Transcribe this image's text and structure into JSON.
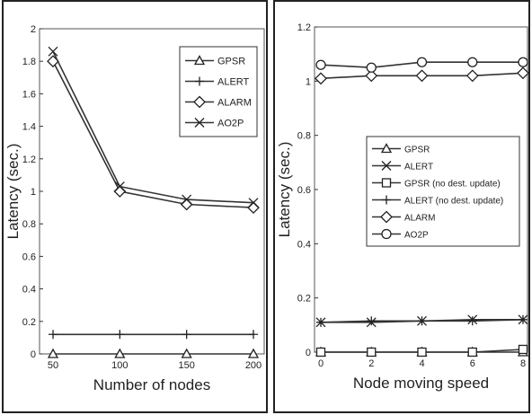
{
  "chart_data": [
    {
      "type": "line",
      "title": "",
      "xlabel": "Number of nodes",
      "ylabel": "Latency (sec.)",
      "x": [
        50,
        100,
        150,
        200
      ],
      "xticks": [
        "50",
        "100",
        "150",
        "200"
      ],
      "ylim": [
        0,
        2
      ],
      "yticks": [
        "0",
        "0.2",
        "0.4",
        "0.6",
        "0.8",
        "1",
        "1.2",
        "1.4",
        "1.6",
        "1.8",
        "2"
      ],
      "legend_position": "top-right",
      "grid": false,
      "series": [
        {
          "name": "GPSR",
          "marker": "triangle",
          "values": [
            0.0,
            0.0,
            0.0,
            0.0
          ]
        },
        {
          "name": "ALERT",
          "marker": "plus",
          "values": [
            0.12,
            0.12,
            0.12,
            0.12
          ]
        },
        {
          "name": "ALARM",
          "marker": "diamond",
          "values": [
            1.8,
            1.0,
            0.92,
            0.9
          ]
        },
        {
          "name": "AO2P",
          "marker": "x",
          "values": [
            1.86,
            1.03,
            0.95,
            0.93
          ]
        }
      ]
    },
    {
      "type": "line",
      "title": "",
      "xlabel": "Node moving speed",
      "ylabel": "Latency (sec.)",
      "x": [
        0,
        2,
        4,
        6,
        8
      ],
      "xticks": [
        "0",
        "2",
        "4",
        "6",
        "8"
      ],
      "ylim": [
        0,
        1.2
      ],
      "yticks": [
        "0",
        "0.2",
        "0.4",
        "0.6",
        "0.8",
        "1",
        "1.2"
      ],
      "legend_position": "center-right",
      "grid": false,
      "series": [
        {
          "name": "GPSR",
          "marker": "triangle",
          "values": [
            0.0,
            0.0,
            0.0,
            0.0,
            0.0
          ]
        },
        {
          "name": "ALERT",
          "marker": "x",
          "values": [
            0.11,
            0.11,
            0.115,
            0.12,
            0.12
          ]
        },
        {
          "name": "GPSR (no dest. update)",
          "marker": "square",
          "values": [
            0.0,
            0.0,
            0.0,
            0.0,
            0.01
          ]
        },
        {
          "name": "ALERT (no dest. update)",
          "marker": "plus",
          "values": [
            0.11,
            0.115,
            0.115,
            0.115,
            0.12
          ]
        },
        {
          "name": "ALARM",
          "marker": "diamond",
          "values": [
            1.01,
            1.02,
            1.02,
            1.02,
            1.03
          ]
        },
        {
          "name": "AO2P",
          "marker": "circle",
          "values": [
            1.06,
            1.05,
            1.07,
            1.07,
            1.07
          ]
        }
      ]
    }
  ]
}
